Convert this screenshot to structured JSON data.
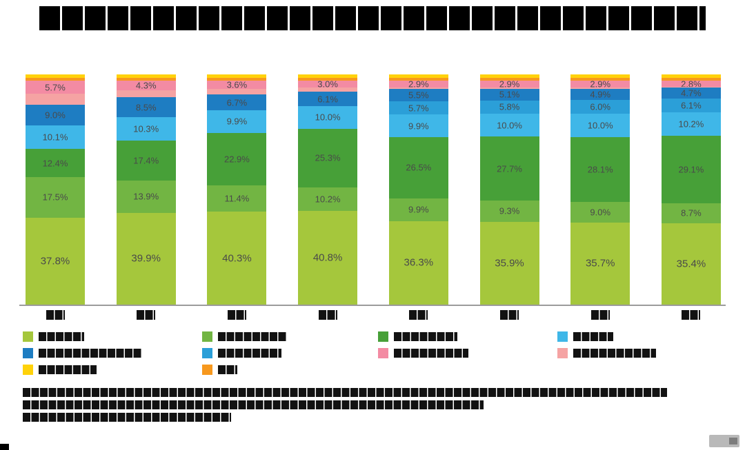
{
  "title": {
    "redacted": true,
    "text": ""
  },
  "colors": {
    "lightgreen": "#a5c73c",
    "medgreen": "#72b543",
    "darkgreen": "#47a038",
    "cyan": "#3fb7e8",
    "blue2": "#2b9fd8",
    "darkblue": "#1e7dc2",
    "pink": "#f38ba3",
    "salmon": "#f5a3a3",
    "orange": "#f7981d",
    "yellow": "#ffd20a",
    "axis_line": "#9b9b9b",
    "label_text": "#4a4a4a"
  },
  "chart_data": {
    "type": "bar",
    "subtype": "stacked-100-percent",
    "title": "",
    "title_redacted": true,
    "categories_redacted": true,
    "categories": [
      "",
      "",
      "",
      "",
      "",
      "",
      "",
      ""
    ],
    "legend_position": "bottom",
    "grid": false,
    "ylim": [
      0,
      100
    ],
    "stack_order_top_to_bottom": [
      "yellow",
      "orange",
      "pink",
      "salmon",
      "darkblue",
      "blue2",
      "cyan",
      "darkgreen",
      "medgreen",
      "lightgreen"
    ],
    "bars": [
      {
        "segments": [
          {
            "color": "yellow",
            "value": 1.4
          },
          {
            "color": "orange",
            "value": 1.3
          },
          {
            "color": "pink",
            "value": 5.7,
            "label": "5.7%"
          },
          {
            "color": "salmon",
            "value": 4.8
          },
          {
            "color": "darkblue",
            "value": 9.0,
            "label": "9.0%"
          },
          {
            "color": "cyan",
            "value": 10.1,
            "label": "10.1%"
          },
          {
            "color": "darkgreen",
            "value": 12.4,
            "label": "12.4%"
          },
          {
            "color": "medgreen",
            "value": 17.5,
            "label": "17.5%"
          },
          {
            "color": "lightgreen",
            "value": 37.8,
            "label": "37.8%"
          }
        ]
      },
      {
        "segments": [
          {
            "color": "yellow",
            "value": 1.4
          },
          {
            "color": "orange",
            "value": 1.3
          },
          {
            "color": "pink",
            "value": 4.3,
            "label": "4.3%"
          },
          {
            "color": "salmon",
            "value": 3.0
          },
          {
            "color": "darkblue",
            "value": 8.5,
            "label": "8.5%"
          },
          {
            "color": "cyan",
            "value": 10.3,
            "label": "10.3%"
          },
          {
            "color": "darkgreen",
            "value": 17.4,
            "label": "17.4%"
          },
          {
            "color": "medgreen",
            "value": 13.9,
            "label": "13.9%"
          },
          {
            "color": "lightgreen",
            "value": 39.9,
            "label": "39.9%"
          }
        ]
      },
      {
        "segments": [
          {
            "color": "yellow",
            "value": 1.4
          },
          {
            "color": "orange",
            "value": 1.3
          },
          {
            "color": "pink",
            "value": 3.6,
            "label": "3.6%"
          },
          {
            "color": "salmon",
            "value": 2.5
          },
          {
            "color": "darkblue",
            "value": 6.7,
            "label": "6.7%"
          },
          {
            "color": "cyan",
            "value": 9.9,
            "label": "9.9%"
          },
          {
            "color": "darkgreen",
            "value": 22.9,
            "label": "22.9%"
          },
          {
            "color": "medgreen",
            "value": 11.4,
            "label": "11.4%"
          },
          {
            "color": "lightgreen",
            "value": 40.3,
            "label": "40.3%"
          }
        ]
      },
      {
        "segments": [
          {
            "color": "yellow",
            "value": 1.4
          },
          {
            "color": "orange",
            "value": 1.3
          },
          {
            "color": "pink",
            "value": 3.0,
            "label": "3.0%"
          },
          {
            "color": "salmon",
            "value": 1.9
          },
          {
            "color": "darkblue",
            "value": 6.1,
            "label": "6.1%"
          },
          {
            "color": "cyan",
            "value": 10.0,
            "label": "10.0%"
          },
          {
            "color": "darkgreen",
            "value": 25.3,
            "label": "25.3%"
          },
          {
            "color": "medgreen",
            "value": 10.2,
            "label": "10.2%"
          },
          {
            "color": "lightgreen",
            "value": 40.8,
            "label": "40.8%"
          }
        ]
      },
      {
        "segments": [
          {
            "color": "yellow",
            "value": 1.4
          },
          {
            "color": "orange",
            "value": 1.3
          },
          {
            "color": "pink",
            "value": 2.9,
            "label": "2.9%"
          },
          {
            "color": "salmon",
            "value": 0.6
          },
          {
            "color": "darkblue",
            "value": 5.5,
            "label": "5.5%"
          },
          {
            "color": "blue2",
            "value": 5.7,
            "label": "5.7%"
          },
          {
            "color": "cyan",
            "value": 9.9,
            "label": "9.9%"
          },
          {
            "color": "darkgreen",
            "value": 26.5,
            "label": "26.5%"
          },
          {
            "color": "medgreen",
            "value": 9.9,
            "label": "9.9%"
          },
          {
            "color": "lightgreen",
            "value": 36.3,
            "label": "36.3%"
          }
        ]
      },
      {
        "segments": [
          {
            "color": "yellow",
            "value": 1.4
          },
          {
            "color": "orange",
            "value": 1.3
          },
          {
            "color": "pink",
            "value": 2.9,
            "label": "2.9%"
          },
          {
            "color": "salmon",
            "value": 0.6
          },
          {
            "color": "darkblue",
            "value": 5.1,
            "label": "5.1%"
          },
          {
            "color": "blue2",
            "value": 5.8,
            "label": "5.8%"
          },
          {
            "color": "cyan",
            "value": 10.0,
            "label": "10.0%"
          },
          {
            "color": "darkgreen",
            "value": 27.7,
            "label": "27.7%"
          },
          {
            "color": "medgreen",
            "value": 9.3,
            "label": "9.3%"
          },
          {
            "color": "lightgreen",
            "value": 35.9,
            "label": "35.9%"
          }
        ]
      },
      {
        "segments": [
          {
            "color": "yellow",
            "value": 1.4
          },
          {
            "color": "orange",
            "value": 1.3
          },
          {
            "color": "pink",
            "value": 2.9,
            "label": "2.9%"
          },
          {
            "color": "salmon",
            "value": 0.7
          },
          {
            "color": "darkblue",
            "value": 4.9,
            "label": "4.9%"
          },
          {
            "color": "blue2",
            "value": 6.0,
            "label": "6.0%"
          },
          {
            "color": "cyan",
            "value": 10.0,
            "label": "10.0%"
          },
          {
            "color": "darkgreen",
            "value": 28.1,
            "label": "28.1%"
          },
          {
            "color": "medgreen",
            "value": 9.0,
            "label": "9.0%"
          },
          {
            "color": "lightgreen",
            "value": 35.7,
            "label": "35.7%"
          }
        ]
      },
      {
        "segments": [
          {
            "color": "yellow",
            "value": 1.4
          },
          {
            "color": "orange",
            "value": 1.3
          },
          {
            "color": "pink",
            "value": 2.8,
            "label": "2.8%"
          },
          {
            "color": "salmon",
            "value": 0.3
          },
          {
            "color": "darkblue",
            "value": 4.7,
            "label": "4.7%"
          },
          {
            "color": "blue2",
            "value": 6.1,
            "label": "6.1%"
          },
          {
            "color": "cyan",
            "value": 10.2,
            "label": "10.2%"
          },
          {
            "color": "darkgreen",
            "value": 29.1,
            "label": "29.1%"
          },
          {
            "color": "medgreen",
            "value": 8.7,
            "label": "8.7%"
          },
          {
            "color": "lightgreen",
            "value": 35.4,
            "label": "35.4%"
          }
        ]
      }
    ]
  },
  "legend": {
    "labels_redacted": true,
    "columns": [
      {
        "items": [
          {
            "color": "lightgreen",
            "w": 66
          },
          {
            "color": "darkblue",
            "w": 150
          },
          {
            "color": "yellow",
            "w": 84
          }
        ]
      },
      {
        "items": [
          {
            "color": "medgreen",
            "w": 100
          },
          {
            "color": "blue2",
            "w": 92
          },
          {
            "color": "orange",
            "w": 28
          }
        ]
      },
      {
        "items": [
          {
            "color": "darkgreen",
            "w": 92
          },
          {
            "color": "pink",
            "w": 108
          }
        ]
      },
      {
        "items": [
          {
            "color": "cyan",
            "w": 58
          },
          {
            "color": "salmon",
            "w": 120
          }
        ]
      }
    ]
  },
  "footnote": {
    "redacted": true,
    "line_widths": [
      934,
      668,
      302
    ]
  }
}
